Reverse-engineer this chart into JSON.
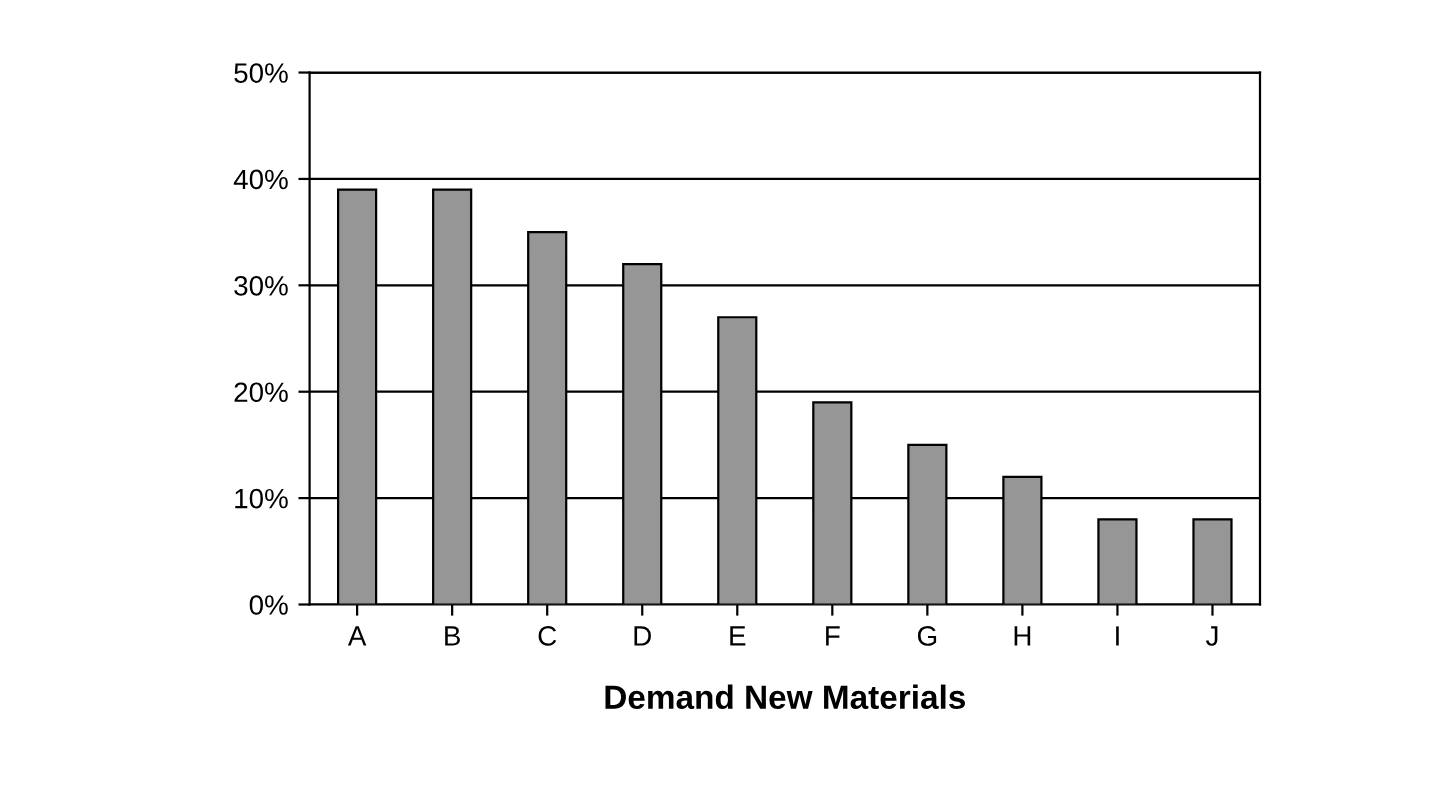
{
  "chart_data": {
    "type": "bar",
    "xlabel": "Demand New Materials",
    "categories": [
      "A",
      "B",
      "C",
      "D",
      "E",
      "F",
      "G",
      "H",
      "I",
      "J"
    ],
    "values": [
      39,
      39,
      35,
      32,
      27,
      19,
      15,
      12,
      8,
      8
    ],
    "color": "#969696",
    "ylim": [
      0,
      50
    ],
    "yticks": [
      {
        "value": 0,
        "label": "0%"
      },
      {
        "value": 10,
        "label": "10%"
      },
      {
        "value": 20,
        "label": "20%"
      },
      {
        "value": 30,
        "label": "30%"
      },
      {
        "value": 40,
        "label": "40%"
      },
      {
        "value": 50,
        "label": "50%"
      }
    ],
    "grid": "y"
  }
}
